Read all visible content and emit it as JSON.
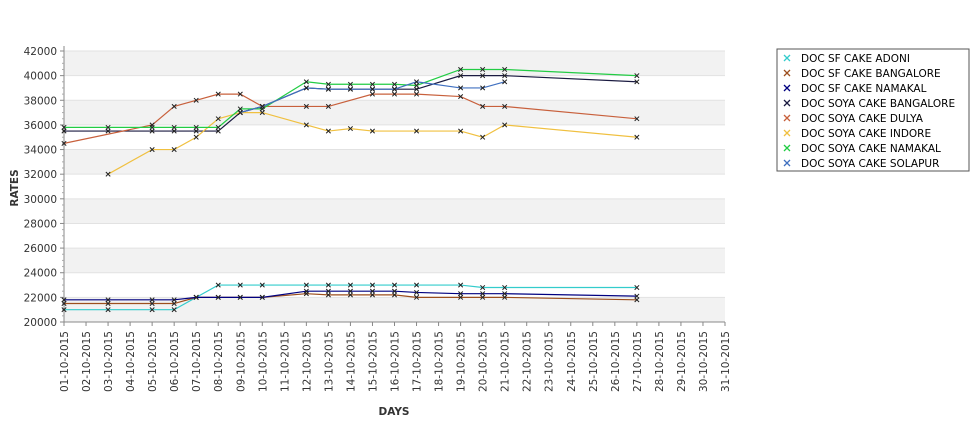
{
  "chart_data": {
    "type": "line",
    "title": "",
    "xlabel": "DAYS",
    "ylabel": "RATES",
    "ylim": [
      20000,
      42000
    ],
    "yticks": [
      20000,
      22000,
      24000,
      26000,
      28000,
      30000,
      32000,
      34000,
      36000,
      38000,
      40000,
      42000
    ],
    "x_tick_labels": [
      "01-10-2015",
      "02-10-2015",
      "03-10-2015",
      "04-10-2015",
      "05-10-2015",
      "06-10-2015",
      "07-10-2015",
      "08-10-2015",
      "09-10-2015",
      "10-10-2015",
      "11-10-2015",
      "12-10-2015",
      "13-10-2015",
      "14-10-2015",
      "15-10-2015",
      "16-10-2015",
      "17-10-2015",
      "18-10-2015",
      "19-10-2015",
      "20-10-2015",
      "21-10-2015",
      "22-10-2015",
      "23-10-2015",
      "24-10-2015",
      "25-10-2015",
      "26-10-2015",
      "27-10-2015",
      "28-10-2015",
      "29-10-2015",
      "30-10-2015",
      "31-10-2015"
    ],
    "grid": "alternating horizontal bands",
    "legend_position": "right",
    "series": [
      {
        "name": "DOC SF CAKE ADONI",
        "color": "#33cccc",
        "x": [
          1,
          3,
          5,
          6,
          7,
          8,
          9,
          10,
          12,
          13,
          14,
          15,
          16,
          17,
          19,
          20,
          21,
          27
        ],
        "y": [
          21000,
          21000,
          21000,
          21000,
          22000,
          23000,
          23000,
          23000,
          23000,
          23000,
          23000,
          23000,
          23000,
          23000,
          23000,
          22800,
          22800,
          22800
        ]
      },
      {
        "name": "DOC SF CAKE BANGALORE",
        "color": "#9c4f1e",
        "x": [
          1,
          3,
          5,
          6,
          7,
          8,
          9,
          10,
          12,
          13,
          14,
          15,
          16,
          17,
          19,
          20,
          21,
          27
        ],
        "y": [
          21500,
          21500,
          21500,
          21500,
          22000,
          22000,
          22000,
          22000,
          22300,
          22200,
          22200,
          22200,
          22200,
          22000,
          22000,
          22000,
          22000,
          21800
        ]
      },
      {
        "name": "DOC SF CAKE NAMAKAL",
        "color": "#000080",
        "x": [
          1,
          3,
          5,
          6,
          7,
          8,
          9,
          10,
          12,
          13,
          14,
          15,
          16,
          17,
          19,
          20,
          21,
          27
        ],
        "y": [
          21800,
          21800,
          21800,
          21800,
          22000,
          22000,
          22000,
          22000,
          22500,
          22500,
          22500,
          22500,
          22500,
          22400,
          22300,
          22300,
          22300,
          22100
        ]
      },
      {
        "name": "DOC SOYA CAKE BANGALORE",
        "color": "#1a1a40",
        "x": [
          1,
          3,
          5,
          6,
          7,
          8,
          9,
          10,
          12,
          13,
          14,
          15,
          16,
          17,
          19,
          20,
          21,
          27
        ],
        "y": [
          35500,
          35500,
          35500,
          35500,
          35500,
          35500,
          37000,
          37500,
          39000,
          38900,
          38900,
          38900,
          38900,
          38900,
          40000,
          40000,
          40000,
          39500
        ]
      },
      {
        "name": "DOC SOYA CAKE DULYA",
        "color": "#c8603c",
        "x": [
          1,
          5,
          6,
          7,
          8,
          9,
          10,
          12,
          13,
          15,
          16,
          17,
          19,
          20,
          21,
          27
        ],
        "y": [
          34500,
          36000,
          37500,
          38000,
          38500,
          38500,
          37500,
          37500,
          37500,
          38500,
          38500,
          38500,
          38300,
          37500,
          37500,
          36500
        ]
      },
      {
        "name": "DOC SOYA CAKE INDORE",
        "color": "#f0c040",
        "x": [
          3,
          5,
          6,
          7,
          8,
          9,
          10,
          12,
          13,
          14,
          15,
          17,
          19,
          20,
          21,
          27
        ],
        "y": [
          32000,
          34000,
          34000,
          35000,
          36500,
          37000,
          37000,
          36000,
          35500,
          35700,
          35500,
          35500,
          35500,
          35000,
          36000,
          35000
        ]
      },
      {
        "name": "DOC SOYA CAKE NAMAKAL",
        "color": "#22cc44",
        "x": [
          1,
          3,
          5,
          6,
          7,
          8,
          9,
          10,
          12,
          13,
          14,
          15,
          16,
          17,
          19,
          20,
          21,
          27
        ],
        "y": [
          35800,
          35800,
          35800,
          35800,
          35800,
          35800,
          37300,
          37300,
          39500,
          39300,
          39300,
          39300,
          39300,
          39200,
          40500,
          40500,
          40500,
          40000
        ]
      },
      {
        "name": "DOC SOYA CAKE SOLAPUR",
        "color": "#4070c0",
        "x": [
          9,
          10,
          12,
          13,
          14,
          15,
          16,
          17,
          19,
          20,
          21
        ],
        "y": [
          37000,
          37500,
          39000,
          38900,
          38900,
          38900,
          38900,
          39500,
          39000,
          39000,
          39500
        ]
      }
    ]
  }
}
